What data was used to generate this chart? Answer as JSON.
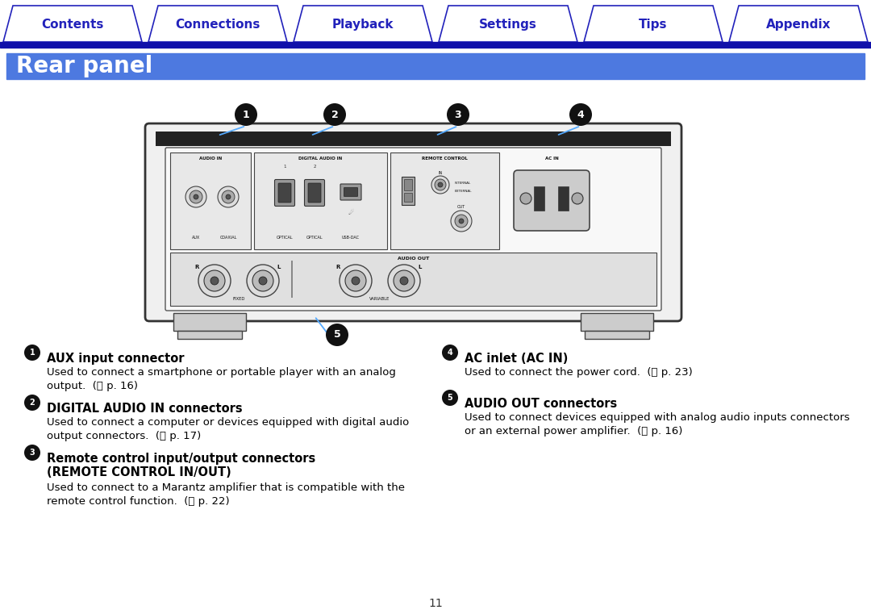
{
  "tab_labels": [
    "Contents",
    "Connections",
    "Playback",
    "Settings",
    "Tips",
    "Appendix"
  ],
  "tab_color": "#2222bb",
  "nav_bar_color": "#1111aa",
  "title": "Rear panel",
  "title_bg": "#4d79e0",
  "title_text_color": "#ffffff",
  "page_bg": "#ffffff",
  "callout_line_color": "#55aaff",
  "callout_fill": "#111111",
  "callout_text": "#ffffff",
  "section1_bold": "AUX input connector",
  "section1_line1": "Used to connect a smartphone or portable player with an analog",
  "section1_line2": "output.  (❟ p. 16)",
  "section2_bold": "DIGITAL AUDIO IN connectors",
  "section2_line1": "Used to connect a computer or devices equipped with digital audio",
  "section2_line2": "output connectors.  (❟ p. 17)",
  "section3_bold1": "Remote control input/output connectors",
  "section3_bold2": "(REMOTE CONTROL IN/OUT)",
  "section3_line1": "Used to connect to a Marantz amplifier that is compatible with the",
  "section3_line2": "remote control function.  (❟ p. 22)",
  "section4_bold": "AC inlet (AC IN)",
  "section4_line1": "Used to connect the power cord.  (❟ p. 23)",
  "section5_bold": "AUDIO OUT connectors",
  "section5_line1": "Used to connect devices equipped with analog audio inputs connectors",
  "section5_line2": "or an external power amplifier.  (❟ p. 16)",
  "page_number": "11"
}
